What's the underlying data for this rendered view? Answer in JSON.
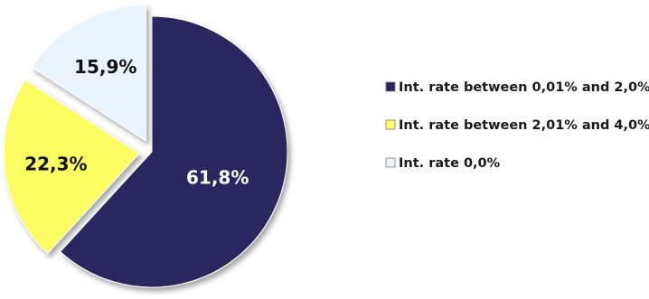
{
  "chart_data": {
    "type": "pie",
    "exploded": true,
    "categories": [
      "Int. rate between 0,01% and 2,0%",
      "Int. rate between 2,01% and 4,0%",
      "Int. rate 0,0%"
    ],
    "values": [
      61.8,
      22.3,
      15.9
    ],
    "data_labels": [
      "61,8%",
      "22,3%",
      "15,9%"
    ],
    "colors": [
      "#29265e",
      "#fcfc64",
      "#eaf3fc"
    ],
    "label_colors": [
      "#ffffff",
      "#111111",
      "#111111"
    ],
    "legend_position": "right",
    "title": ""
  }
}
